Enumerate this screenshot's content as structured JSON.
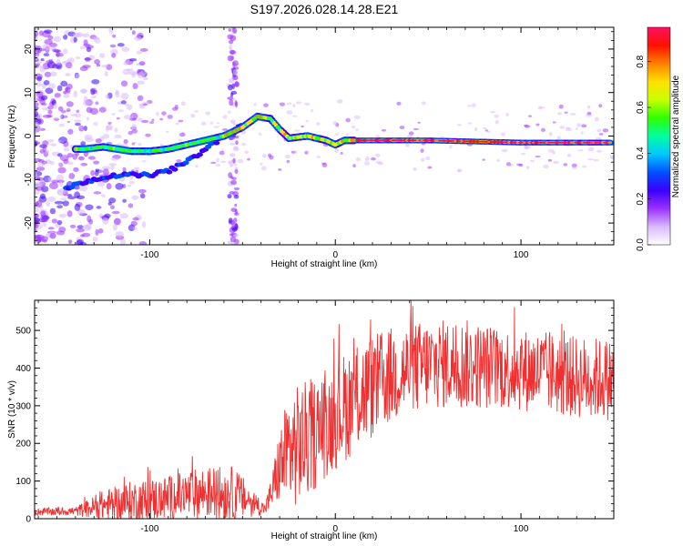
{
  "title": "S197.2026.028.14.28.E21",
  "chart_data": [
    {
      "type": "heatmap",
      "name": "spectrogram",
      "xlabel": "Height of straight line (km)",
      "ylabel": "Frequency (Hz)",
      "xlim": [
        -162,
        150
      ],
      "ylim": [
        -25,
        25
      ],
      "xticks": [
        -100,
        0,
        100
      ],
      "xtick_labels": [
        "-100",
        "0",
        "100"
      ],
      "yticks": [
        -20,
        -10,
        0,
        10,
        20
      ],
      "ytick_labels": [
        "-20",
        "-10",
        "0",
        "10",
        "20"
      ],
      "ridge": [
        {
          "x": -135,
          "y": -3
        },
        {
          "x": -125,
          "y": -2.5
        },
        {
          "x": -110,
          "y": -3.5
        },
        {
          "x": -100,
          "y": -3.5
        },
        {
          "x": -90,
          "y": -3
        },
        {
          "x": -80,
          "y": -2
        },
        {
          "x": -70,
          "y": -1
        },
        {
          "x": -60,
          "y": 0
        },
        {
          "x": -50,
          "y": 2
        },
        {
          "x": -42,
          "y": 4.5
        },
        {
          "x": -35,
          "y": 4
        },
        {
          "x": -30,
          "y": 1.5
        },
        {
          "x": -25,
          "y": -0.5
        },
        {
          "x": -15,
          "y": 0
        },
        {
          "x": -5,
          "y": -1
        },
        {
          "x": 0,
          "y": -2
        },
        {
          "x": 5,
          "y": -1
        },
        {
          "x": 10,
          "y": -1
        },
        {
          "x": 50,
          "y": -1
        },
        {
          "x": 100,
          "y": -1.5
        },
        {
          "x": 148,
          "y": -1.5
        }
      ],
      "lower_branch": [
        {
          "x": -145,
          "y": -12
        },
        {
          "x": -135,
          "y": -10.5
        },
        {
          "x": -120,
          "y": -9
        },
        {
          "x": -100,
          "y": -9
        },
        {
          "x": -90,
          "y": -8
        },
        {
          "x": -80,
          "y": -6
        },
        {
          "x": -70,
          "y": -3
        },
        {
          "x": -60,
          "y": 0
        },
        {
          "x": -50,
          "y": 2.5
        }
      ],
      "colorbar": {
        "label": "Normalized spectral amplitude",
        "range": [
          0,
          0.95
        ],
        "ticks": [
          0.0,
          0.2,
          0.4,
          0.6,
          0.8
        ],
        "tick_labels": [
          "0.0",
          "0.2",
          "0.4",
          "0.6",
          "0.8"
        ],
        "colors": [
          "#ffffff",
          "#d9b8ff",
          "#9b30ff",
          "#3a00ff",
          "#0050ff",
          "#00c8ff",
          "#00ffa0",
          "#30ff00",
          "#c8ff00",
          "#ffe000",
          "#ff8000",
          "#ff1000",
          "#ff1060"
        ]
      }
    },
    {
      "type": "line",
      "name": "snr",
      "xlabel": "Height of straight line (km)",
      "ylabel": "SNR (10 * v/v)",
      "xlim": [
        -162,
        150
      ],
      "ylim": [
        0,
        580
      ],
      "xticks": [
        -100,
        0,
        100
      ],
      "xtick_labels": [
        "-100",
        "0",
        "100"
      ],
      "yticks": [
        0,
        100,
        200,
        300,
        400,
        500
      ],
      "ytick_labels": [
        "0",
        "100",
        "200",
        "300",
        "400",
        "500"
      ],
      "color": "#f03030",
      "envelope": [
        {
          "x": -162,
          "base": 18,
          "amp": 10
        },
        {
          "x": -140,
          "base": 20,
          "amp": 12
        },
        {
          "x": -125,
          "base": 35,
          "amp": 40
        },
        {
          "x": -110,
          "base": 45,
          "amp": 55
        },
        {
          "x": -90,
          "base": 55,
          "amp": 60
        },
        {
          "x": -70,
          "base": 70,
          "amp": 70
        },
        {
          "x": -55,
          "base": 65,
          "amp": 75
        },
        {
          "x": -45,
          "base": 45,
          "amp": 40
        },
        {
          "x": -38,
          "base": 25,
          "amp": 15
        },
        {
          "x": -35,
          "base": 60,
          "amp": 40
        },
        {
          "x": -30,
          "base": 140,
          "amp": 100
        },
        {
          "x": -25,
          "base": 180,
          "amp": 160
        },
        {
          "x": -15,
          "base": 210,
          "amp": 160
        },
        {
          "x": -5,
          "base": 250,
          "amp": 140
        },
        {
          "x": 10,
          "base": 320,
          "amp": 150
        },
        {
          "x": 30,
          "base": 380,
          "amp": 130
        },
        {
          "x": 50,
          "base": 410,
          "amp": 120
        },
        {
          "x": 70,
          "base": 410,
          "amp": 120
        },
        {
          "x": 90,
          "base": 400,
          "amp": 110
        },
        {
          "x": 110,
          "base": 390,
          "amp": 110
        },
        {
          "x": 130,
          "base": 375,
          "amp": 110
        },
        {
          "x": 150,
          "base": 370,
          "amp": 110
        }
      ]
    }
  ]
}
